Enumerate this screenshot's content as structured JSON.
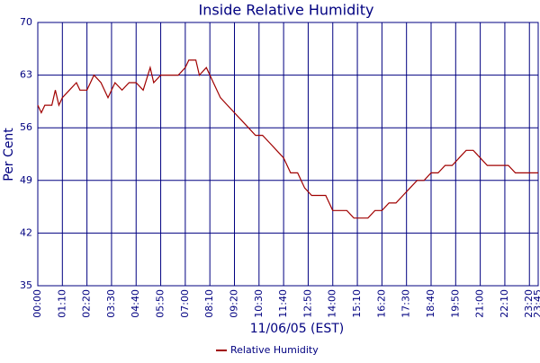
{
  "chart_data": {
    "type": "line",
    "title": "Inside Relative Humidity",
    "xlabel": "11/06/05 (EST)",
    "ylabel": "Per Cent",
    "x": [
      0,
      10,
      20,
      40,
      50,
      60,
      70,
      90,
      110,
      120,
      140,
      150,
      160,
      180,
      200,
      220,
      240,
      260,
      280,
      300,
      320,
      330,
      350,
      380,
      400,
      420,
      430,
      450,
      460,
      480,
      500,
      520,
      540,
      560,
      580,
      600,
      620,
      640,
      660,
      680,
      700,
      720,
      740,
      760,
      780,
      800,
      820,
      840,
      860,
      880,
      900,
      920,
      940,
      960,
      980,
      1000,
      1020,
      1040,
      1060,
      1080,
      1100,
      1120,
      1140,
      1160,
      1180,
      1200,
      1220,
      1240,
      1260,
      1280,
      1300,
      1320,
      1340,
      1360,
      1380,
      1400,
      1425
    ],
    "series": [
      {
        "name": "Relative Humidity",
        "color": "#a00000",
        "values": [
          59,
          58,
          59,
          59,
          61,
          59,
          60,
          61,
          62,
          61,
          61,
          62,
          63,
          62,
          60,
          62,
          61,
          62,
          62,
          61,
          64,
          62,
          63,
          63,
          63,
          64,
          65,
          65,
          63,
          64,
          62,
          60,
          59,
          58,
          57,
          56,
          55,
          55,
          54,
          53,
          52,
          50,
          50,
          48,
          47,
          47,
          47,
          45,
          45,
          45,
          44,
          44,
          44,
          45,
          45,
          46,
          46,
          47,
          48,
          49,
          49,
          50,
          50,
          51,
          51,
          52,
          53,
          53,
          52,
          51,
          51,
          51,
          51,
          50,
          50,
          50,
          50
        ]
      }
    ],
    "xlim": [
      0,
      1425
    ],
    "xticks": [
      {
        "value": 0,
        "label": "00:00"
      },
      {
        "value": 70,
        "label": "01:10"
      },
      {
        "value": 140,
        "label": "02:20"
      },
      {
        "value": 210,
        "label": "03:30"
      },
      {
        "value": 280,
        "label": "04:40"
      },
      {
        "value": 350,
        "label": "05:50"
      },
      {
        "value": 420,
        "label": "07:00"
      },
      {
        "value": 490,
        "label": "08:10"
      },
      {
        "value": 560,
        "label": "09:20"
      },
      {
        "value": 630,
        "label": "10:30"
      },
      {
        "value": 700,
        "label": "11:40"
      },
      {
        "value": 770,
        "label": "12:50"
      },
      {
        "value": 840,
        "label": "14:00"
      },
      {
        "value": 910,
        "label": "15:10"
      },
      {
        "value": 980,
        "label": "16:20"
      },
      {
        "value": 1050,
        "label": "17:30"
      },
      {
        "value": 1120,
        "label": "18:40"
      },
      {
        "value": 1190,
        "label": "19:50"
      },
      {
        "value": 1260,
        "label": "21:00"
      },
      {
        "value": 1330,
        "label": "22:10"
      },
      {
        "value": 1400,
        "label": "23:20"
      },
      {
        "value": 1425,
        "label": "23:45"
      }
    ],
    "ylim": [
      35,
      70
    ],
    "yticks": [
      35,
      42,
      49,
      56,
      63,
      70
    ],
    "grid": true
  }
}
